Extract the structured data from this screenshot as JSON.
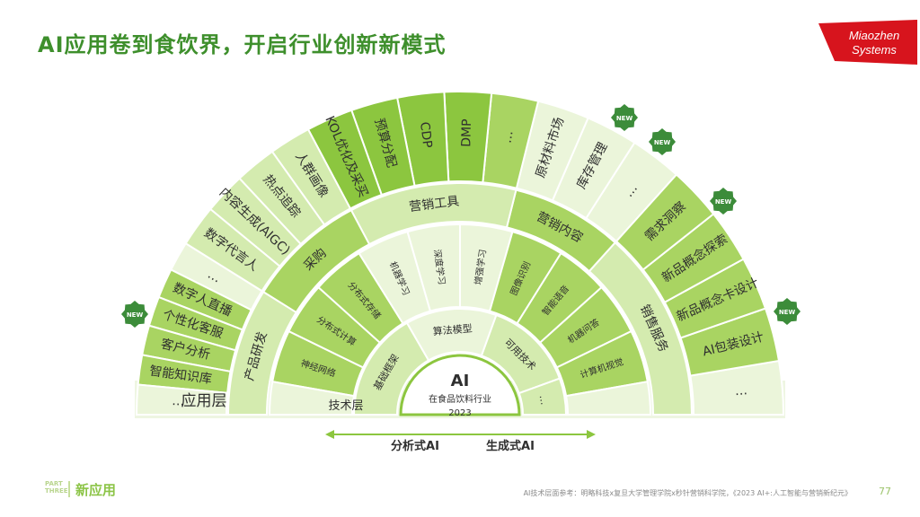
{
  "title": "AI应用卷到食饮界，开启行业创新新模式",
  "logo": {
    "line1": "Miaozhen",
    "line2": "Systems"
  },
  "center": {
    "line1": "AI",
    "line2": "在食品饮料行业",
    "line3": "2023"
  },
  "layer_labels": {
    "app": "应用层",
    "tech": "技术层"
  },
  "categories": {
    "product": "产品研发",
    "purchase": "采购",
    "tools": "营销工具",
    "content": "营销内容",
    "sales": "销售服务"
  },
  "tech_labels": {
    "algo": "算法模型",
    "avail": "可用技术"
  },
  "tech_items": [
    "神经网络",
    "分布式计算",
    "分布式存储",
    "机器学习",
    "深度学习",
    "增强学习",
    "图像识别",
    "智能语音",
    "机器问答",
    "计算机视觉"
  ],
  "tech_inner": [
    "基础框架",
    "算法模型",
    "可用技术",
    "…"
  ],
  "app_items": {
    "product": [
      "…",
      "AI包装设计",
      "新品概念卡设计",
      "新品概念探索",
      "需求洞察"
    ],
    "purchase": [
      "…",
      "库存管理",
      "原材料市场"
    ],
    "tools": [
      "…",
      "DMP",
      "CDP",
      "预算分配",
      "KOL优化及采买"
    ],
    "content": [
      "人群画像",
      "热点追踪",
      "内容生成(AIGC)",
      "数字代言人"
    ],
    "sales": [
      "…",
      "智能知识库",
      "客户分析",
      "个性化客服",
      "数字人直播",
      "…"
    ]
  },
  "new_badge": "NEW",
  "axis": {
    "left": "分析式AI",
    "right": "生成式AI"
  },
  "footer": {
    "part": "PART THREE",
    "section": "新应用",
    "reference": "AI技术层面参考：明略科技x复旦大学管理学院x秒针营销科学院，《2023 AI+:人工智能与营销新纪元》",
    "page": "77"
  },
  "colors": {
    "dark": "#8cc63f",
    "mid": "#a9d462",
    "light": "#d4ebaf",
    "pale": "#ebf5da",
    "title": "#3e8f2c",
    "text": "#2f2f2f"
  }
}
